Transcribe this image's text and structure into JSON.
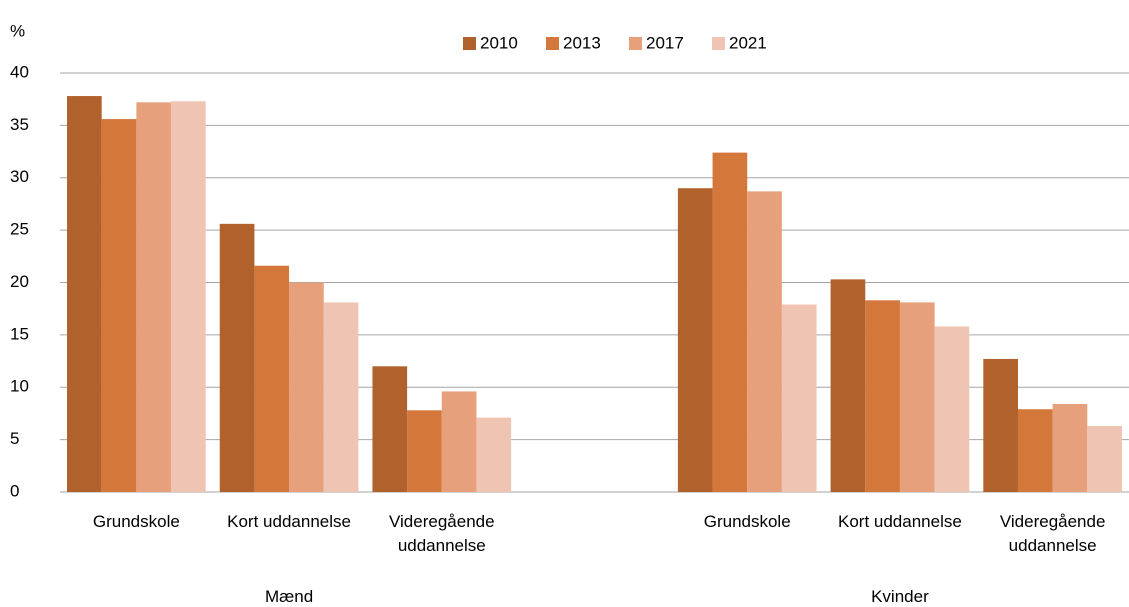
{
  "chart_data": {
    "type": "bar",
    "y_unit": "%",
    "categories": [
      "Grundskole",
      "Kort uddannelse",
      "Videregående uddannelse",
      null,
      "Grundskole",
      "Kort uddannelse",
      "Videregående uddannelse"
    ],
    "group_labels": [
      "Mænd",
      "Kvinder"
    ],
    "series": [
      {
        "name": "2010",
        "color": "#b0612c",
        "values": [
          37.8,
          25.6,
          12.0,
          null,
          29.0,
          20.3,
          12.7
        ]
      },
      {
        "name": "2013",
        "color": "#d4773a",
        "values": [
          35.6,
          21.6,
          7.8,
          null,
          32.4,
          18.3,
          7.9
        ]
      },
      {
        "name": "2017",
        "color": "#e6a07c",
        "values": [
          37.2,
          20.0,
          9.6,
          null,
          28.7,
          18.1,
          8.4
        ]
      },
      {
        "name": "2021",
        "color": "#f0c4b2",
        "values": [
          37.3,
          18.1,
          7.1,
          null,
          17.9,
          15.8,
          6.3
        ]
      }
    ],
    "ylim": [
      0,
      40
    ],
    "yticks": [
      0,
      5,
      10,
      15,
      20,
      25,
      30,
      35,
      40
    ],
    "grid": true
  }
}
